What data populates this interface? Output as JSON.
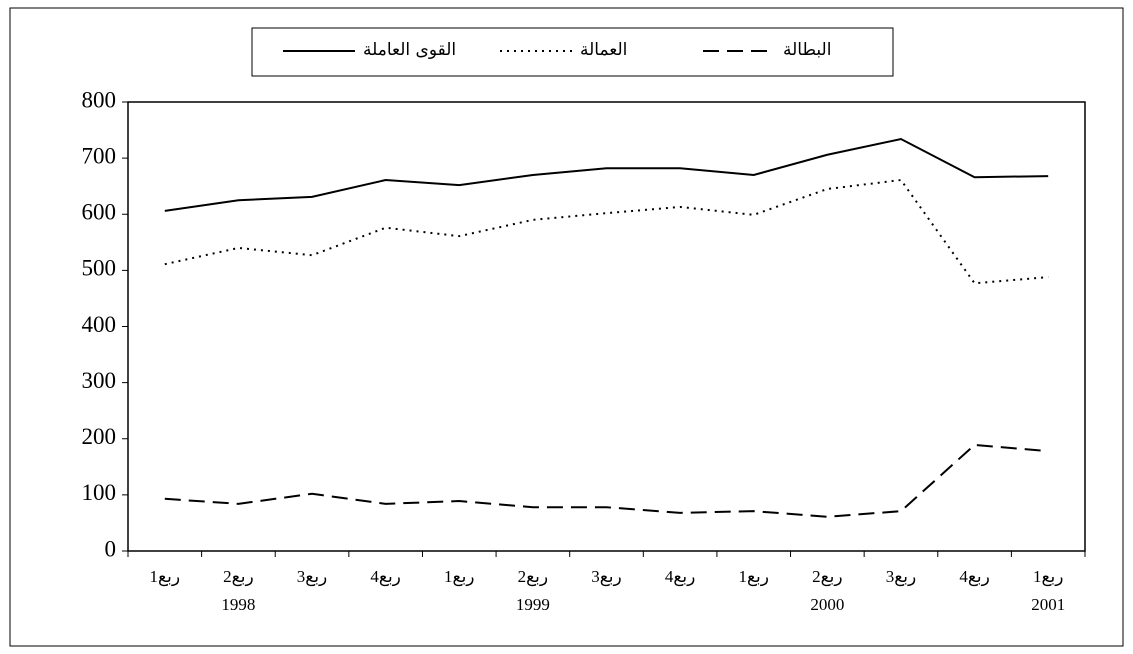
{
  "chart_data": {
    "type": "line",
    "categories": [
      "ربع1",
      "ربع2",
      "ربع3",
      "ربع4",
      "ربع1",
      "ربع2",
      "ربع3",
      "ربع4",
      "ربع1",
      "ربع2",
      "ربع3",
      "ربع4",
      "ربع1"
    ],
    "years": [
      null,
      "1998",
      null,
      null,
      null,
      "1999",
      null,
      null,
      null,
      "2000",
      null,
      null,
      "2001"
    ],
    "series": [
      {
        "name": "القوى العاملة",
        "color": "#000000",
        "line_style": "solid",
        "values": [
          606,
          625,
          631,
          661,
          652,
          670,
          682,
          682,
          670,
          706,
          734,
          666,
          668
        ]
      },
      {
        "name": "العمالة",
        "color": "#000000",
        "line_style": "dotted",
        "values": [
          511,
          540,
          527,
          576,
          561,
          590,
          602,
          613,
          599,
          645,
          661,
          477,
          488
        ]
      },
      {
        "name": "البطالة",
        "color": "#000000",
        "line_style": "dashed",
        "values": [
          93,
          84,
          102,
          84,
          89,
          78,
          78,
          68,
          71,
          61,
          71,
          189,
          178
        ]
      }
    ],
    "ylim": [
      0,
      800
    ],
    "yticks": [
      0,
      100,
      200,
      300,
      400,
      500,
      600,
      700,
      800
    ],
    "grid": false
  }
}
